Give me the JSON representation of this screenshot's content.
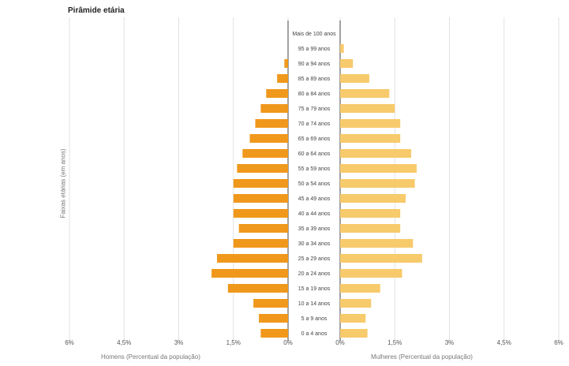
{
  "chart_data": {
    "type": "bar",
    "title": "Pirâmide etária",
    "ylabel": "Faixas etárias (em anos)",
    "xlabel_left": "Homens (Percentual da população)",
    "xlabel_right": "Mulheres (Percentual da população)",
    "ticks_left": [
      "6%",
      "4,5%",
      "3%",
      "1,5%",
      "0%"
    ],
    "ticks_right": [
      "0%",
      "1,5%",
      "3%",
      "4,5%",
      "6%"
    ],
    "xlim": [
      0,
      6
    ],
    "colors": {
      "men": "#f0981c",
      "women": "#f7ca6c"
    },
    "categories": [
      "Mais de 100 anos",
      "95 a 99 anos",
      "90 a 94 anos",
      "85 a 89 anos",
      "80 a 84 anos",
      "75 a 79 anos",
      "70 a 74 anos",
      "65 a 69 anos",
      "60 a 64 anos",
      "55 a 59 anos",
      "50 a 54 anos",
      "45 a 49 anos",
      "40 a 44 anos",
      "35 a 39 anos",
      "30 a 34 anos",
      "25 a 29 anos",
      "20 a 24 anos",
      "15 a 19 anos",
      "10 a 14 anos",
      "5 a 9 anos",
      "0 a 4 anos"
    ],
    "series": [
      {
        "name": "Homens",
        "values": [
          0,
          0,
          0.1,
          0.3,
          0.6,
          0.75,
          0.9,
          1.05,
          1.25,
          1.4,
          1.5,
          1.5,
          1.5,
          1.35,
          1.5,
          1.95,
          2.1,
          1.65,
          0.95,
          0.8,
          0.75
        ]
      },
      {
        "name": "Mulheres",
        "values": [
          0,
          0.1,
          0.35,
          0.8,
          1.35,
          1.5,
          1.65,
          1.65,
          1.95,
          2.1,
          2.05,
          1.8,
          1.65,
          1.65,
          2.0,
          2.25,
          1.7,
          1.1,
          0.85,
          0.7,
          0.75
        ]
      }
    ]
  }
}
